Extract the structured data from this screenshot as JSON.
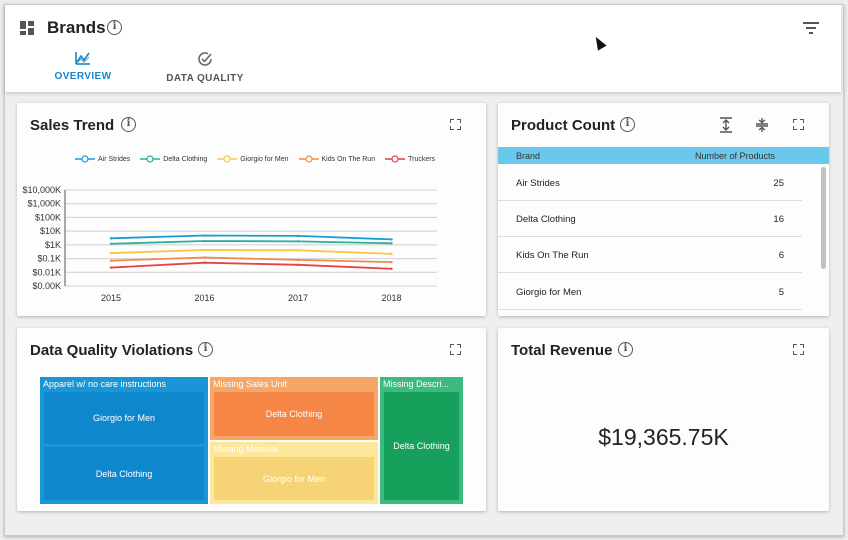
{
  "header": {
    "title": "Brands",
    "tabs": [
      {
        "label": "OVERVIEW",
        "active": true
      },
      {
        "label": "DATA QUALITY",
        "active": false
      }
    ]
  },
  "icons": {
    "dashboard": "dashboard-icon",
    "info": "info-icon",
    "filter": "filter-icon",
    "expand": "fullscreen-icon"
  },
  "colors": {
    "accent": "#1a86c9",
    "table_header": "#6ac8ed"
  },
  "sales_trend": {
    "title": "Sales Trend",
    "chart_data": {
      "type": "line",
      "x": [
        "2015",
        "2016",
        "2017",
        "2018"
      ],
      "y_scale": "log",
      "y_ticks": [
        "$0.00K",
        "$0.01K",
        "$0.1K",
        "$1K",
        "$10K",
        "$100K",
        "$1,000K",
        "$10,000K"
      ],
      "grid": true,
      "legend": "top",
      "series": [
        {
          "name": "Air Strides",
          "color": "#1a9bd7",
          "values": [
            3000,
            4800,
            4500,
            2500
          ]
        },
        {
          "name": "Delta Clothing",
          "color": "#2bb09a",
          "values": [
            1200,
            1900,
            1800,
            1300
          ]
        },
        {
          "name": "Giorgio for Men",
          "color": "#f5c842",
          "values": [
            250,
            420,
            400,
            220
          ]
        },
        {
          "name": "Kids On The Run",
          "color": "#f08a4b",
          "values": [
            70,
            120,
            80,
            55
          ]
        },
        {
          "name": "Truckers",
          "color": "#e84141",
          "values": [
            22,
            50,
            35,
            18
          ]
        }
      ]
    }
  },
  "product_count": {
    "title": "Product Count",
    "columns": [
      "Brand",
      "Number of Products"
    ],
    "rows": [
      {
        "brand": "Air Strides",
        "count": "25"
      },
      {
        "brand": "Delta Clothing",
        "count": "16"
      },
      {
        "brand": "Kids On The Run",
        "count": "6"
      },
      {
        "brand": "Giorgio for Men",
        "count": "5"
      }
    ]
  },
  "dq_violations": {
    "title": "Data Quality Violations",
    "groups": [
      {
        "label": "Apparel w/ no care instructions",
        "color": "#1a9bd7",
        "items": [
          "Giorgio for Men",
          "Delta Clothing"
        ]
      },
      {
        "label": "Missing Sales Unit",
        "color": "#f0a060",
        "items": [
          "Delta Clothing"
        ]
      },
      {
        "label": "Missing Material",
        "color": "#f9dc6e",
        "items": [
          "Giorgio for Men"
        ]
      },
      {
        "label": "Missing Descri...",
        "color": "#2eb079",
        "items": [
          "Delta Clothing"
        ]
      }
    ]
  },
  "total_revenue": {
    "title": "Total Revenue",
    "value": "$19,365.75K"
  }
}
